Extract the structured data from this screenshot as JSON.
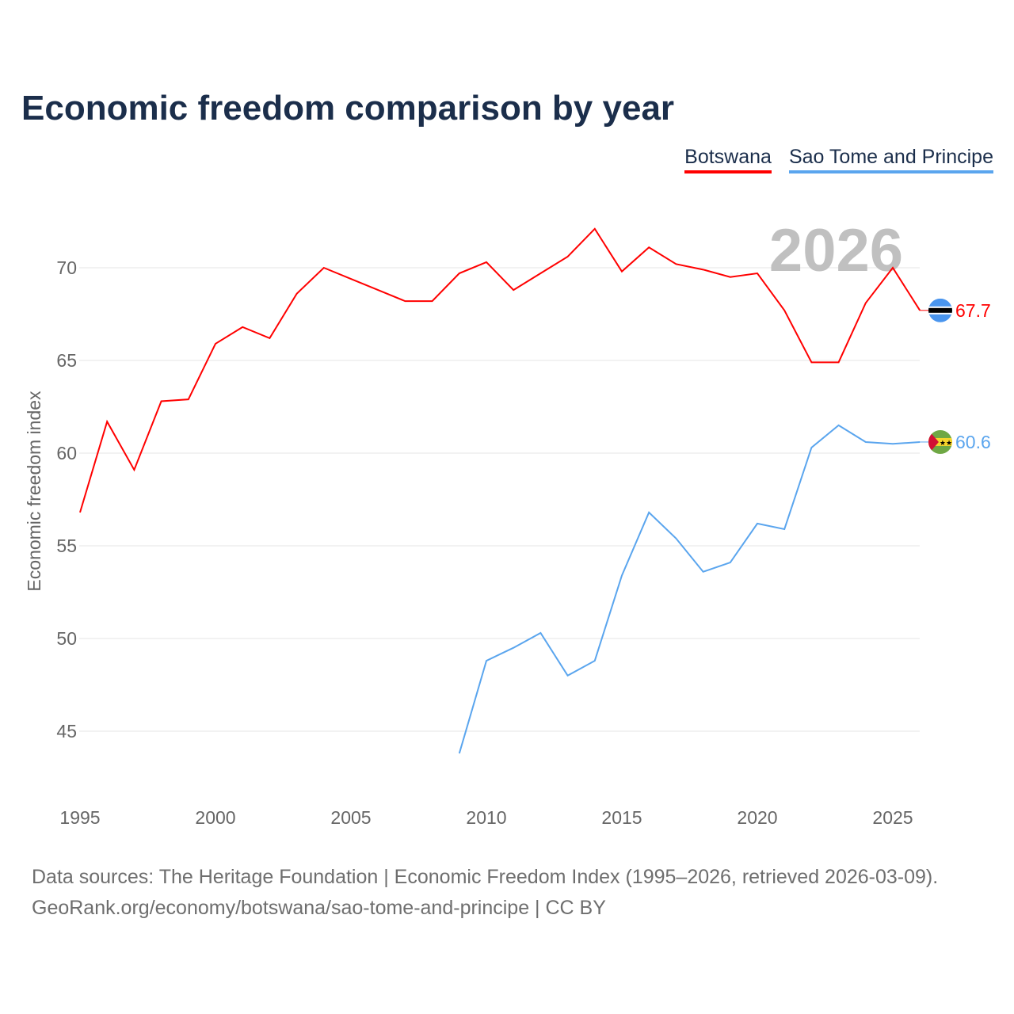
{
  "chart_data": {
    "type": "line",
    "title": "Economic freedom comparison by year",
    "xlabel": "",
    "ylabel": "Economic freedom index",
    "xlim": [
      1995,
      2026
    ],
    "ylim": [
      42.5,
      72.5
    ],
    "x_ticks": [
      1995,
      2000,
      2005,
      2010,
      2015,
      2020,
      2025
    ],
    "y_ticks": [
      45,
      50,
      55,
      60,
      65,
      70
    ],
    "grid": true,
    "legend_position": "top-right",
    "year_label": "2026",
    "series": [
      {
        "name": "Botswana",
        "color": "#ff0000",
        "end_label": "67.7",
        "flag": "botswana-flag",
        "x": [
          1995,
          1996,
          1997,
          1998,
          1999,
          2000,
          2001,
          2002,
          2003,
          2004,
          2005,
          2006,
          2007,
          2008,
          2009,
          2010,
          2011,
          2012,
          2013,
          2014,
          2015,
          2016,
          2017,
          2018,
          2019,
          2020,
          2021,
          2022,
          2023,
          2024,
          2025,
          2026
        ],
        "values": [
          56.8,
          61.7,
          59.1,
          62.8,
          62.9,
          65.9,
          66.8,
          66.2,
          68.6,
          70.0,
          69.4,
          68.8,
          68.2,
          68.2,
          69.7,
          70.3,
          68.8,
          69.7,
          70.6,
          72.1,
          69.8,
          71.1,
          70.2,
          69.9,
          69.5,
          69.7,
          67.7,
          64.9,
          64.9,
          68.1,
          70.0,
          67.7
        ]
      },
      {
        "name": "Sao Tome and Principe",
        "color": "#5aa5ee",
        "end_label": "60.6",
        "flag": "sao-tome-flag",
        "x": [
          2009,
          2010,
          2011,
          2012,
          2013,
          2014,
          2015,
          2016,
          2017,
          2018,
          2019,
          2020,
          2021,
          2022,
          2023,
          2024,
          2025,
          2026
        ],
        "values": [
          43.8,
          48.8,
          49.5,
          50.3,
          48.0,
          48.8,
          53.4,
          56.8,
          55.4,
          53.6,
          54.1,
          56.2,
          55.9,
          60.3,
          61.5,
          60.6,
          60.5,
          60.6
        ]
      }
    ]
  },
  "footer": {
    "line1": "Data sources: The Heritage Foundation | Economic Freedom Index (1995–2026, retrieved 2026-03-09).",
    "line2": "GeoRank.org/economy/botswana/sao-tome-and-principe | CC BY"
  }
}
